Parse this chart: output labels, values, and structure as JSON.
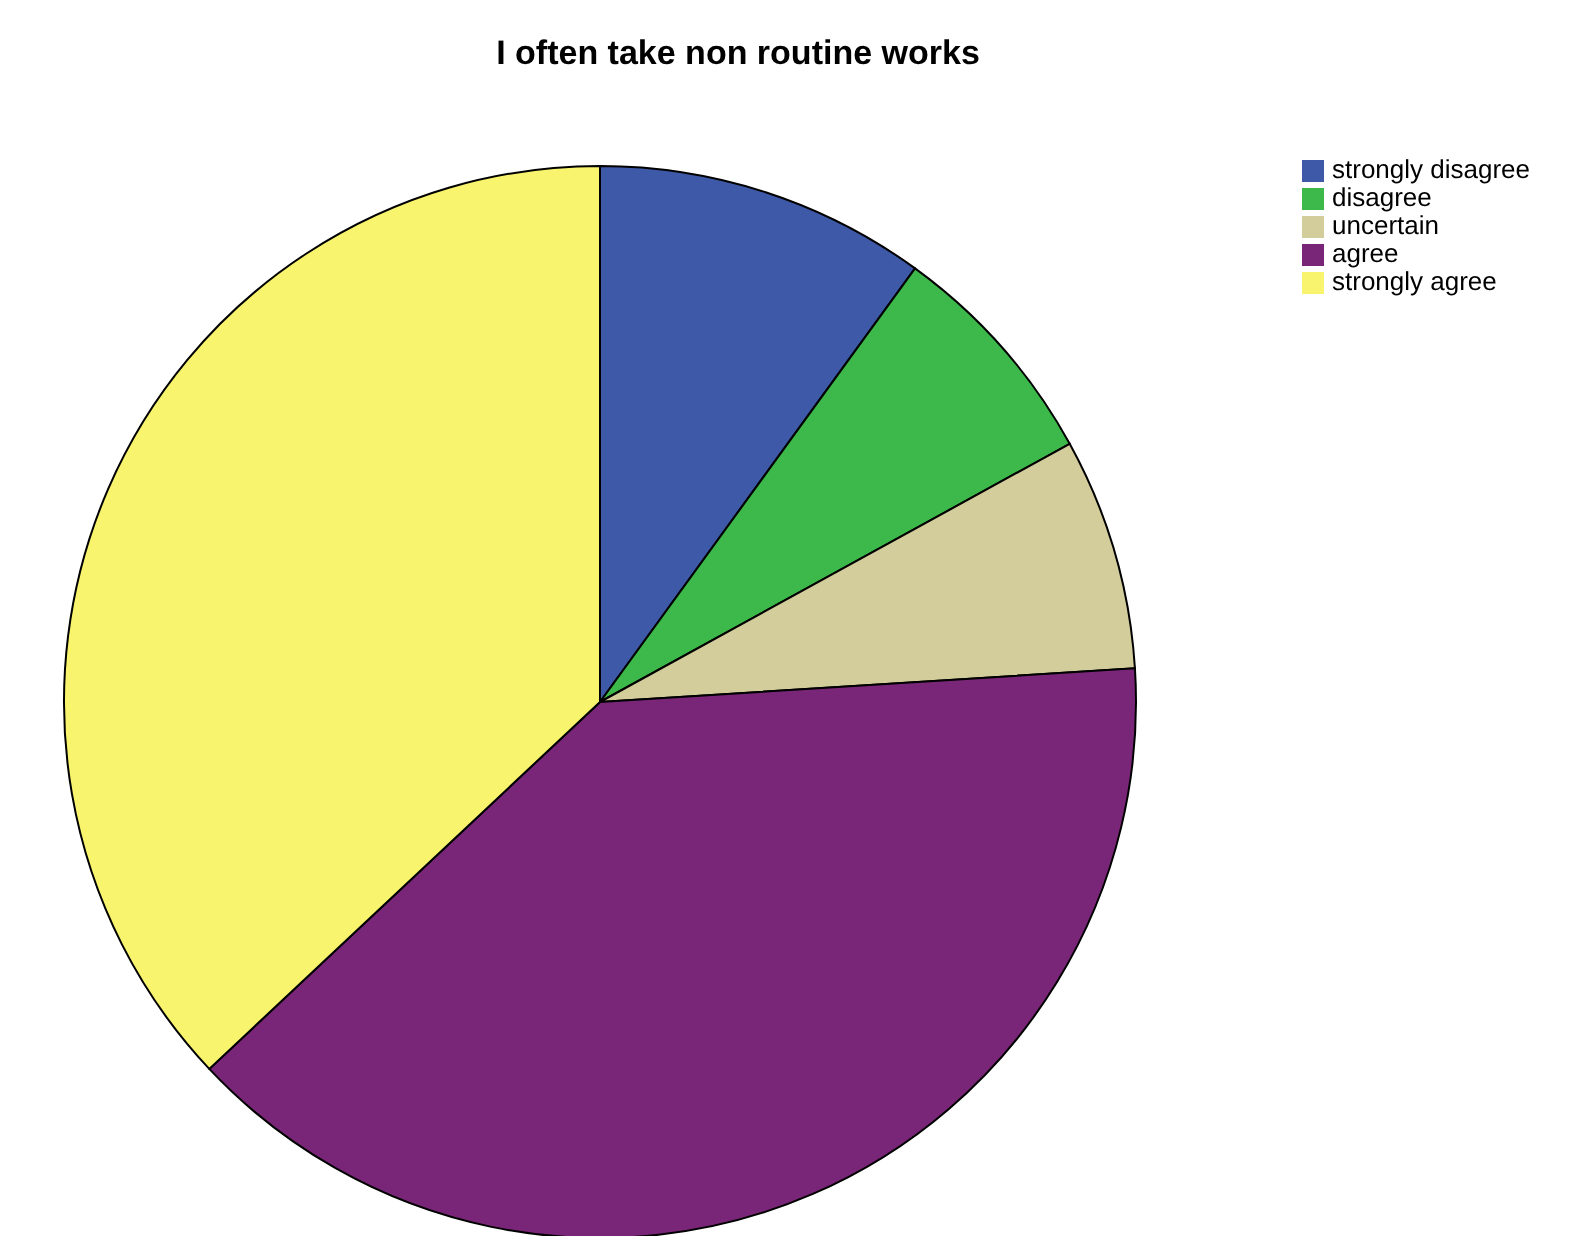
{
  "chart_data": {
    "type": "pie",
    "title": "I often take non routine works",
    "categories": [
      "strongly disagree",
      "disagree",
      "uncertain",
      "agree",
      "strongly agree"
    ],
    "values": [
      10,
      7,
      7,
      39,
      37
    ],
    "colors": [
      "#3e59a8",
      "#3cb94a",
      "#d3cd9b",
      "#7a2678",
      "#f8f46e"
    ],
    "legend": "top right"
  }
}
